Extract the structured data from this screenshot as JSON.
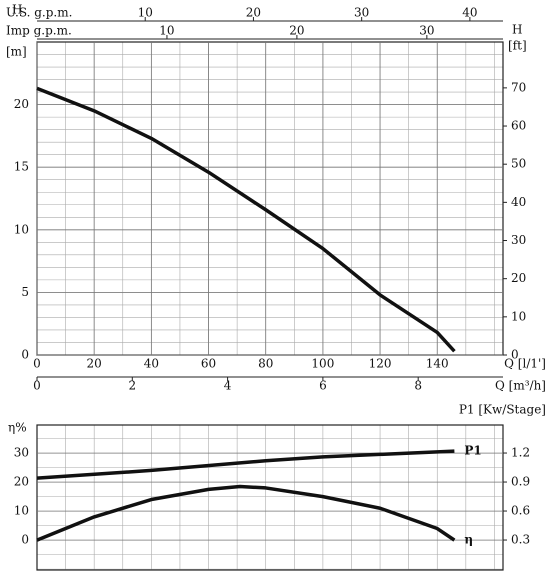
{
  "chart_data": [
    {
      "type": "line",
      "y_label": "H",
      "y_unit": "[m]",
      "y2_label": "H",
      "y2_unit": "[ft]",
      "x_label": "Q [l/1']",
      "xlim": [
        0,
        163
      ],
      "xticks": [
        0,
        20,
        40,
        60,
        80,
        100,
        120,
        140
      ],
      "xgrid_step": 10,
      "ylim": [
        0,
        25
      ],
      "yticks": [
        0,
        5,
        10,
        15,
        20
      ],
      "ygrid_step": 1,
      "y2lim": [
        0,
        82.02
      ],
      "y2ticks": [
        0,
        10,
        20,
        30,
        40,
        50,
        60,
        70
      ],
      "x_axes": [
        {
          "label": "Q [m³/h]",
          "position": "bottom",
          "lim": [
            0,
            9.78
          ],
          "ticks": [
            0,
            2,
            4,
            6,
            8
          ]
        },
        {
          "label": "U.S.  g.p.m.",
          "position": "top",
          "lim": [
            0,
            43.06
          ],
          "ticks": [
            10,
            20,
            30,
            40
          ]
        },
        {
          "label": "Imp  g.p.m.",
          "position": "top",
          "lim": [
            0,
            35.86
          ],
          "ticks": [
            10,
            20,
            30
          ]
        }
      ],
      "grid": true,
      "color": "#111111",
      "x": [
        0,
        20,
        40,
        60,
        80,
        100,
        120,
        140,
        146
      ],
      "values": [
        21.3,
        19.5,
        17.3,
        14.6,
        11.6,
        8.5,
        4.8,
        1.8,
        0.3
      ]
    },
    {
      "type": "line",
      "y_label": "η%",
      "y2_label": "P1 [Kw/Stage]",
      "xlim": [
        0,
        163
      ],
      "xgrid_step": 10,
      "ylim": [
        -10.3,
        39.7
      ],
      "yticks": [
        0,
        10,
        20,
        30
      ],
      "ygrid_step": 5,
      "y2lim": [
        -0.01,
        1.49
      ],
      "y2ticks": [
        0.3,
        0.6,
        0.9,
        1.2
      ],
      "grid": true,
      "series": [
        {
          "name": "P1",
          "axis": "y2",
          "color": "#111111",
          "x": [
            0,
            40,
            80,
            100,
            146
          ],
          "values": [
            0.94,
            1.02,
            1.12,
            1.16,
            1.22
          ]
        },
        {
          "name": "η",
          "color": "#111111",
          "x": [
            0,
            20,
            40,
            60,
            71,
            80,
            100,
            120,
            140,
            146
          ],
          "values": [
            0,
            8,
            14,
            17.5,
            18.5,
            18,
            15,
            11,
            4,
            0
          ]
        }
      ]
    }
  ]
}
